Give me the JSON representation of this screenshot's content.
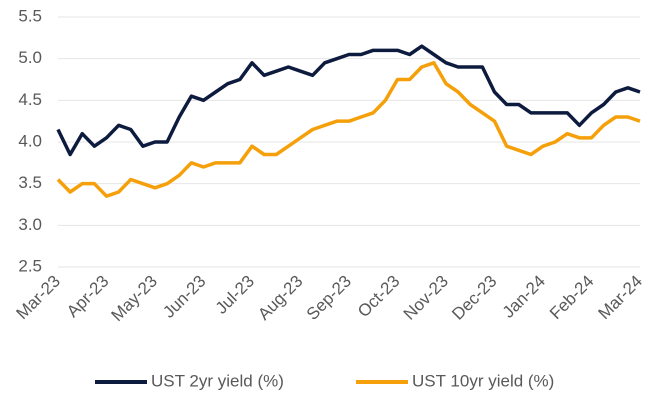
{
  "chart_data": {
    "type": "line",
    "categories": [
      "Mar-23",
      null,
      null,
      null,
      "Apr-23",
      null,
      null,
      null,
      "May-23",
      null,
      null,
      null,
      "Jun-23",
      null,
      null,
      null,
      "Jul-23",
      null,
      null,
      null,
      "Aug-23",
      null,
      null,
      null,
      "Sep-23",
      null,
      null,
      null,
      "Oct-23",
      null,
      null,
      null,
      "Nov-23",
      null,
      null,
      null,
      "Dec-23",
      null,
      null,
      null,
      "Jan-24",
      null,
      null,
      null,
      "Feb-24",
      null,
      null,
      null,
      "Mar-24"
    ],
    "series": [
      {
        "name": "UST 2yr yield (%)",
        "color": "#0d1b3e",
        "values": [
          4.15,
          3.85,
          4.1,
          3.95,
          4.05,
          4.2,
          4.15,
          3.95,
          4.0,
          4.0,
          4.3,
          4.55,
          4.5,
          4.6,
          4.7,
          4.75,
          4.95,
          4.8,
          4.85,
          4.9,
          4.85,
          4.8,
          4.95,
          5.0,
          5.05,
          5.05,
          5.1,
          5.1,
          5.1,
          5.05,
          5.15,
          5.05,
          4.95,
          4.9,
          4.9,
          4.9,
          4.6,
          4.45,
          4.45,
          4.35,
          4.35,
          4.35,
          4.35,
          4.2,
          4.35,
          4.45,
          4.6,
          4.65,
          4.6
        ]
      },
      {
        "name": "UST 10yr yield (%)",
        "color": "#f5a00a",
        "values": [
          3.55,
          3.4,
          3.5,
          3.5,
          3.35,
          3.4,
          3.55,
          3.5,
          3.45,
          3.5,
          3.6,
          3.75,
          3.7,
          3.75,
          3.75,
          3.75,
          3.95,
          3.85,
          3.85,
          3.95,
          4.05,
          4.15,
          4.2,
          4.25,
          4.25,
          4.3,
          4.35,
          4.5,
          4.75,
          4.75,
          4.9,
          4.95,
          4.7,
          4.6,
          4.45,
          4.35,
          4.25,
          3.95,
          3.9,
          3.85,
          3.95,
          4.0,
          4.1,
          4.05,
          4.05,
          4.2,
          4.3,
          4.3,
          4.25
        ]
      }
    ],
    "ylim": [
      2.5,
      5.5
    ],
    "yticks": [
      2.5,
      {
        "value": 3.0,
        "label": "3.0"
      },
      3.5,
      {
        "value": 4.0,
        "label": "4.0"
      },
      4.5,
      {
        "value": 5.0,
        "label": "5.0"
      },
      5.5
    ],
    "grid": true,
    "legend": "bottom"
  }
}
